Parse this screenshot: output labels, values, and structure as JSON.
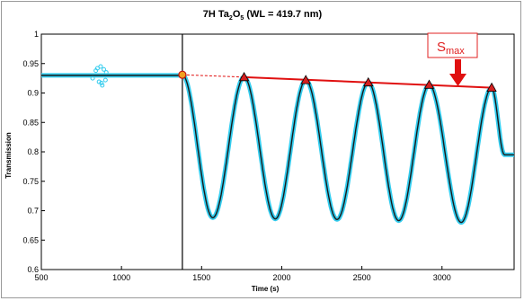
{
  "chart_data": {
    "type": "line",
    "title": {
      "main": "7H Ta",
      "sub1": "2",
      "mid": "O",
      "sub2": "5",
      "tail": " (WL = 419.7 nm)"
    },
    "xlabel": "Time (s)",
    "ylabel": "Transmission",
    "xlim": [
      500,
      3450
    ],
    "ylim": [
      0.6,
      1.0
    ],
    "xticks": [
      500,
      1000,
      1500,
      2000,
      2500,
      3000
    ],
    "yticks": [
      0.6,
      0.65,
      0.7,
      0.75,
      0.8,
      0.85,
      0.9,
      0.95,
      1
    ],
    "ytick_labels": [
      "0.6",
      "0.65",
      "0.7",
      "0.75",
      "0.8",
      "0.85",
      "0.9",
      "0.95",
      "1"
    ],
    "grid": false,
    "vertical_marker_x": 1380,
    "annotation": {
      "text_main": "S",
      "text_sub": "max"
    },
    "colors": {
      "measured": "#33ccee",
      "fit": "#1a1a1a",
      "envelope": "#e01010",
      "marker_fill": "#d42020",
      "start_marker": "#f0a020"
    },
    "baseline": {
      "x": [
        500,
        1380
      ],
      "y": 0.93
    },
    "start_point": {
      "x": 1380,
      "y": 0.931
    },
    "maxima": [
      {
        "x": 1765,
        "y": 0.927
      },
      {
        "x": 2150,
        "y": 0.922
      },
      {
        "x": 2540,
        "y": 0.918
      },
      {
        "x": 2920,
        "y": 0.914
      },
      {
        "x": 3310,
        "y": 0.909
      }
    ],
    "minima": [
      {
        "x": 1570,
        "y": 0.688
      },
      {
        "x": 1960,
        "y": 0.686
      },
      {
        "x": 2345,
        "y": 0.685
      },
      {
        "x": 2730,
        "y": 0.683
      },
      {
        "x": 3120,
        "y": 0.68
      }
    ],
    "end_level": {
      "x": [
        3390,
        3450
      ],
      "y": 0.795
    }
  }
}
